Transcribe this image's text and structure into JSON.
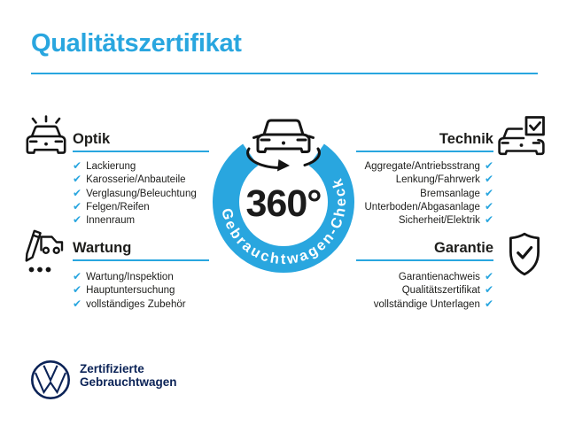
{
  "page": {
    "title": "Qualitätszertifikat"
  },
  "colors": {
    "accent_blue": "#29A6DF",
    "ink": "#1D1D1B",
    "navy": "#0B2357",
    "white": "#FFFFFF"
  },
  "checkmark": "✔",
  "center": {
    "value": "360°",
    "ring_label": "Gebrauchtwagen-Check",
    "icon": "rotating-car-icon"
  },
  "sections": [
    {
      "id": "optik",
      "title": "Optik",
      "icon": "sparkling-car-icon",
      "side": "left",
      "items": [
        "Lackierung",
        "Karosserie/Anbauteile",
        "Verglasung/Beleuchtung",
        "Felgen/Reifen",
        "Innenraum"
      ]
    },
    {
      "id": "technik",
      "title": "Technik",
      "icon": "car-checkbox-icon",
      "side": "right",
      "items": [
        "Aggregate/Antriebsstrang",
        "Lenkung/Fahrwerk",
        "Bremsanlage",
        "Unterboden/Abgasanlage",
        "Sicherheit/Elektrik"
      ]
    },
    {
      "id": "wartung",
      "title": "Wartung",
      "icon": "pencil-checklist-car-icon",
      "side": "left",
      "items": [
        "Wartung/Inspektion",
        "Hauptuntersuchung",
        "vollständiges Zubehör"
      ]
    },
    {
      "id": "garantie",
      "title": "Garantie",
      "icon": "shield-check-icon",
      "side": "right",
      "items": [
        "Garantienachweis",
        "Qualitätszertifikat",
        "vollständige Unterlagen"
      ]
    }
  ],
  "footer": {
    "line1": "Zertifizierte",
    "line2": "Gebrauchtwagen",
    "logo": "vw-logo"
  }
}
